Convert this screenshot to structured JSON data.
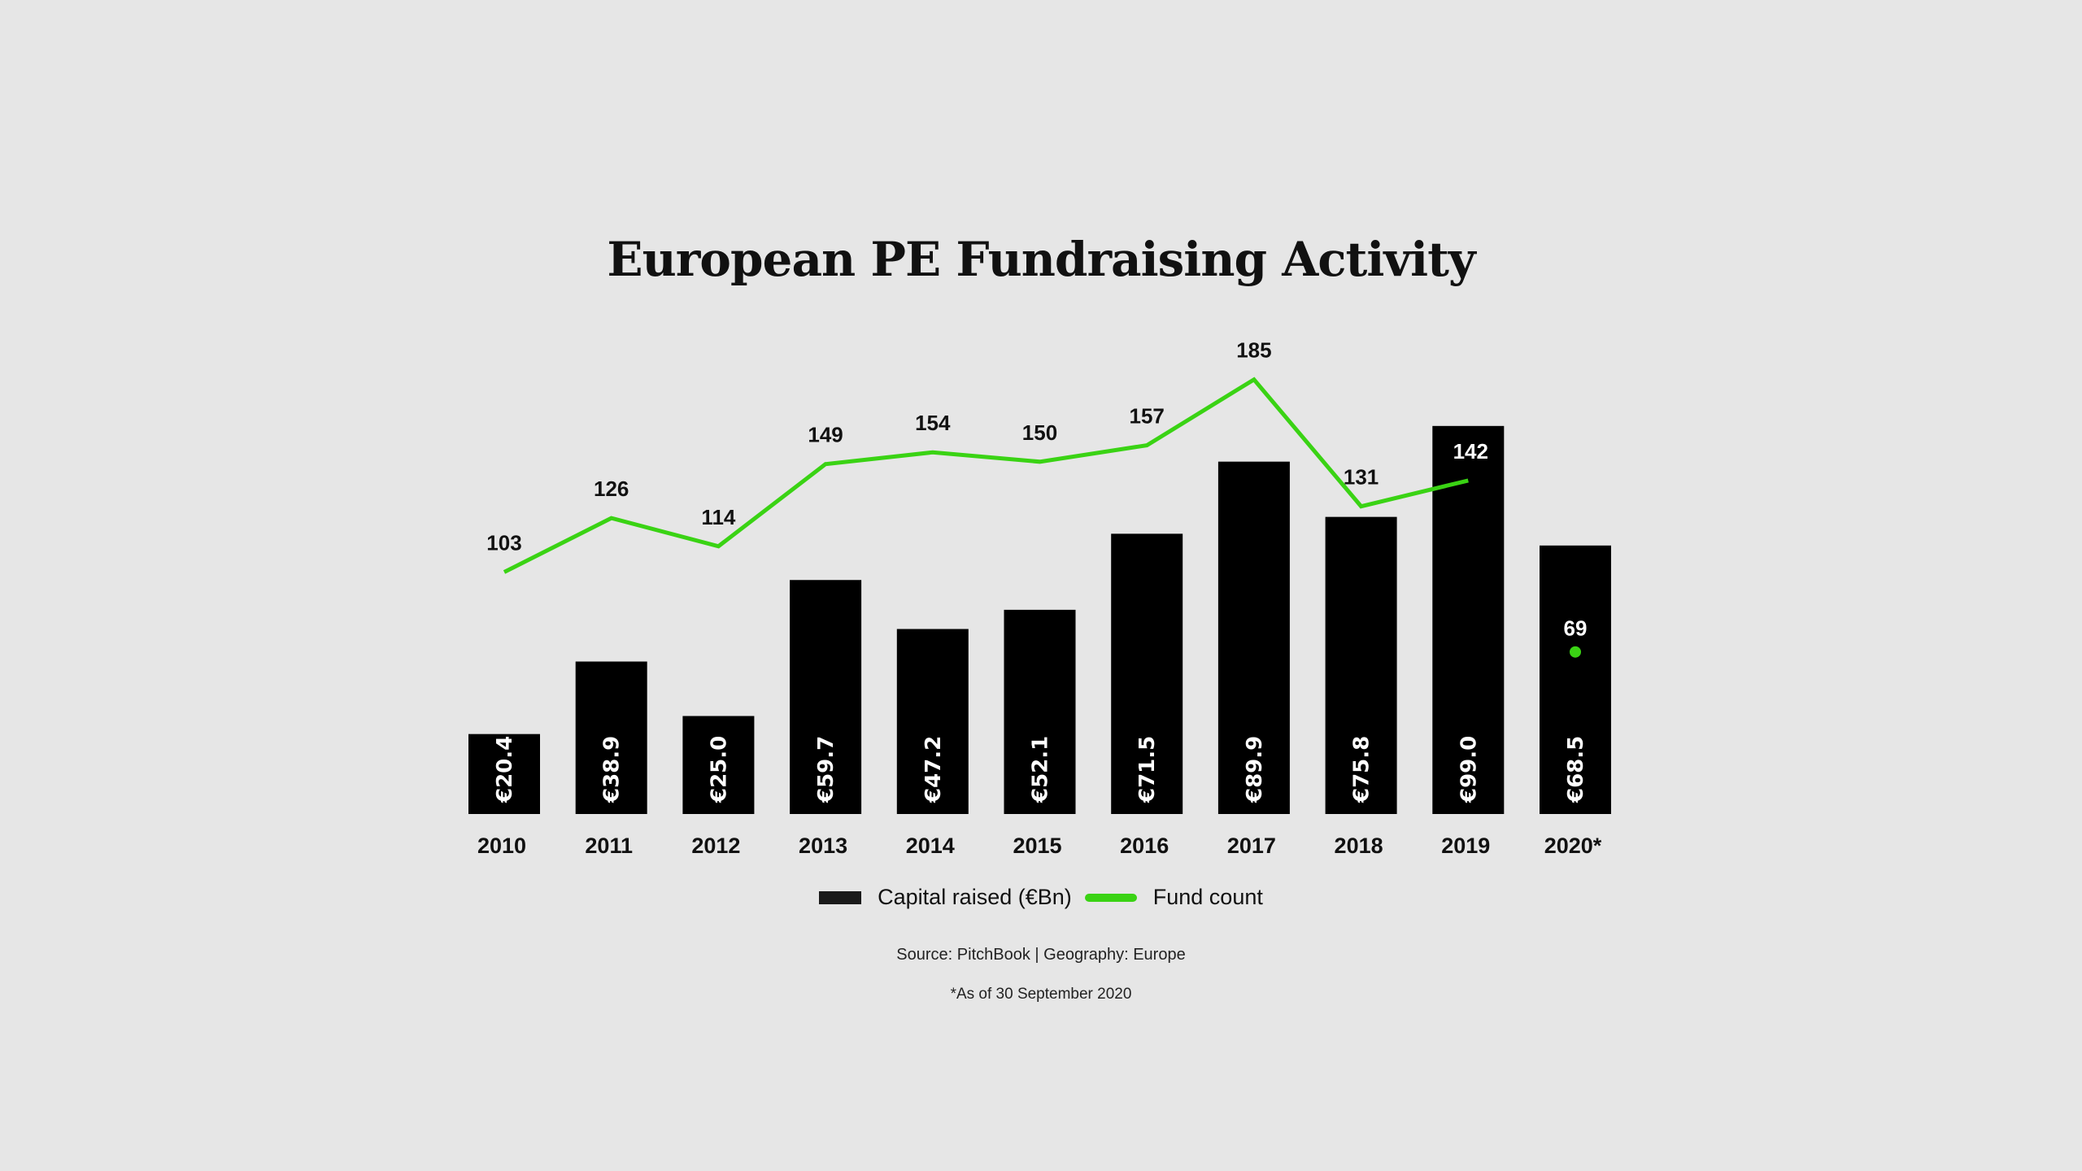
{
  "chart_data": {
    "type": "bar+line",
    "title": "European PE Fundraising Activity",
    "categories": [
      "2010",
      "2011",
      "2012",
      "2013",
      "2014",
      "2015",
      "2016",
      "2017",
      "2018",
      "2019",
      "2020*"
    ],
    "series": [
      {
        "name": "Capital raised (€Bn)",
        "type": "bar",
        "values": [
          20.4,
          38.9,
          25.0,
          59.7,
          47.2,
          52.1,
          71.5,
          89.9,
          75.8,
          99.0,
          68.5
        ],
        "labels": [
          "€20.4",
          "€38.9",
          "€25.0",
          "€59.7",
          "€47.2",
          "€52.1",
          "€71.5",
          "€89.9",
          "€75.8",
          "€99.0",
          "€68.5"
        ],
        "color": "#000000"
      },
      {
        "name": "Fund count",
        "type": "line",
        "values": [
          103,
          126,
          114,
          149,
          154,
          150,
          157,
          185,
          131,
          142,
          69
        ],
        "color": "#3ad314"
      }
    ],
    "legend": [
      "Capital raised (€Bn)",
      "Fund count"
    ],
    "legend_position": "bottom",
    "grid": false
  },
  "source": "Source: PitchBook | Geography: Europe",
  "footnote": "*As of 30 September 2020"
}
